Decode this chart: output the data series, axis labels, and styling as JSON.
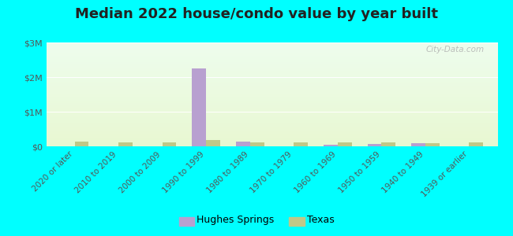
{
  "title": "Median 2022 house/condo value by year built",
  "background_color": "#00FFFF",
  "categories": [
    "2020 or later",
    "2010 to 2019",
    "2000 to 2009",
    "1990 to 1999",
    "1980 to 1989",
    "1970 to 1979",
    "1960 to 1969",
    "1950 to 1959",
    "1940 to 1949",
    "1939 or earlier"
  ],
  "hughes_springs_values": [
    0,
    0,
    0,
    2250000,
    130000,
    0,
    50000,
    60000,
    90000,
    0
  ],
  "texas_values": [
    130000,
    120000,
    115000,
    175000,
    115000,
    110000,
    110000,
    105000,
    95000,
    110000
  ],
  "hughes_springs_color": "#b8a0d0",
  "texas_color": "#c0c888",
  "ylim": [
    0,
    3000000
  ],
  "yticks": [
    0,
    1000000,
    2000000,
    3000000
  ],
  "ytick_labels": [
    "$0",
    "$1M",
    "$2M",
    "$3M"
  ],
  "legend_hughes": "Hughes Springs",
  "legend_texas": "Texas",
  "bar_width": 0.32,
  "title_fontsize": 13,
  "tick_fontsize": 7.5,
  "legend_fontsize": 9,
  "watermark": "City-Data.com"
}
